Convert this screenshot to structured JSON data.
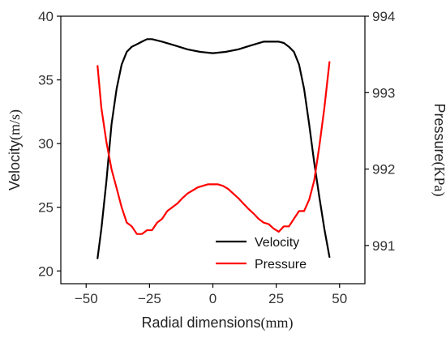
{
  "chart_data": {
    "type": "line",
    "xlabel": "Radial dimensions",
    "xunit": "(mm)",
    "ylabel_left": "Velocity",
    "ylabel_left_unit": "(m/s)",
    "ylabel_right": "Pressure",
    "ylabel_right_unit": "(KPa)",
    "xlim": [
      -60,
      60
    ],
    "ylim_left": [
      19,
      40
    ],
    "ylim_right": [
      990.5,
      994
    ],
    "xticks": [
      -50,
      -25,
      0,
      25,
      50
    ],
    "yticks_left": [
      20,
      25,
      30,
      35,
      40
    ],
    "yticks_right": [
      991,
      992,
      993,
      994
    ],
    "grid": false,
    "legend_position": "bottom-right",
    "series": [
      {
        "name": "Velocity",
        "axis": "left",
        "color": "#000000",
        "x": [
          -45.5,
          -44,
          -42,
          -40,
          -38,
          -36,
          -34,
          -32,
          -30,
          -28,
          -26,
          -24,
          -20,
          -15,
          -10,
          -5,
          0,
          5,
          10,
          15,
          20,
          24,
          26,
          28,
          30,
          32,
          34,
          36,
          38,
          40,
          42,
          44,
          46
        ],
        "y": [
          21.0,
          23.3,
          27.1,
          31.5,
          34.3,
          36.2,
          37.2,
          37.6,
          37.8,
          38.0,
          38.2,
          38.2,
          38.0,
          37.7,
          37.4,
          37.2,
          37.1,
          37.2,
          37.4,
          37.7,
          38.0,
          38.0,
          38.0,
          37.9,
          37.6,
          37.2,
          36.2,
          34.3,
          31.5,
          28.5,
          25.8,
          23.3,
          21.1
        ]
      },
      {
        "name": "Pressure",
        "axis": "right",
        "color": "#ff0000",
        "x": [
          -45.5,
          -44,
          -42,
          -40,
          -38,
          -36,
          -34,
          -32,
          -30,
          -28,
          -26,
          -24,
          -22,
          -20,
          -18,
          -16,
          -14,
          -12,
          -10,
          -8,
          -6,
          -4,
          -2,
          0,
          2,
          4,
          6,
          8,
          10,
          12,
          14,
          16,
          18,
          20,
          22,
          24,
          26,
          28,
          30,
          32,
          34,
          36,
          38,
          40,
          42,
          44,
          46
        ],
        "y": [
          993.35,
          992.8,
          992.35,
          992.0,
          991.75,
          991.5,
          991.3,
          991.25,
          991.15,
          991.15,
          991.2,
          991.2,
          991.3,
          991.35,
          991.45,
          991.5,
          991.55,
          991.62,
          991.68,
          991.72,
          991.76,
          991.78,
          991.8,
          991.8,
          991.8,
          991.78,
          991.74,
          991.68,
          991.62,
          991.55,
          991.48,
          991.42,
          991.35,
          991.3,
          991.28,
          991.22,
          991.18,
          991.25,
          991.25,
          991.35,
          991.45,
          991.45,
          991.6,
          991.85,
          992.3,
          992.8,
          993.4
        ]
      }
    ]
  }
}
